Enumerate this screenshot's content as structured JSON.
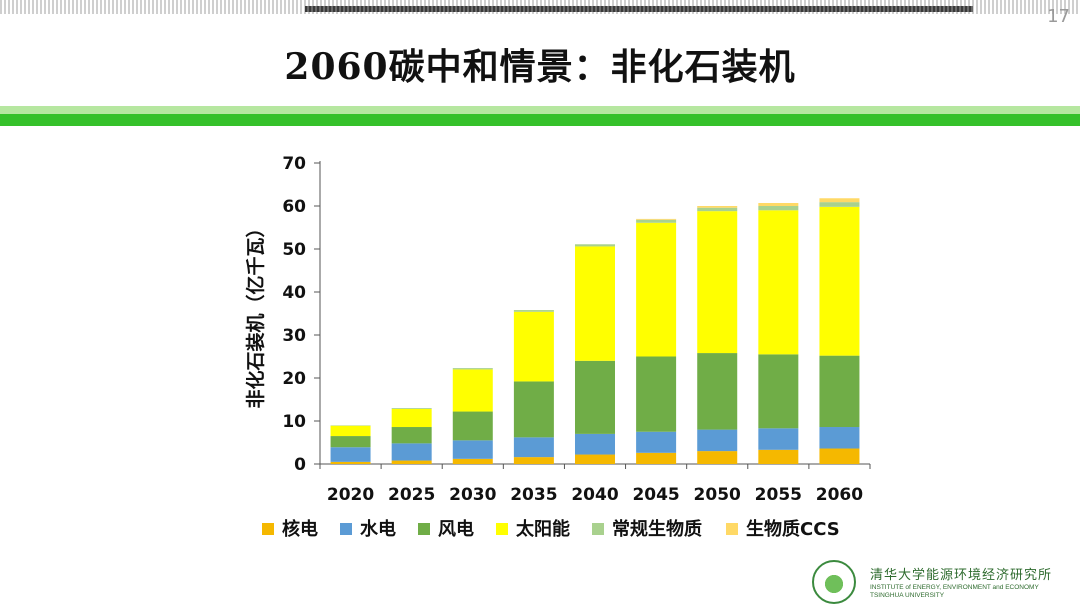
{
  "page": {
    "title": "2060碳中和情景：非化石装机",
    "page_number": "17"
  },
  "footer": {
    "institute_cn": "清华大学能源环境经济研究所",
    "institute_en_line1": "INSTITUTE of ENERGY, ENVIRONMENT and ECONOMY",
    "institute_en_line2": "TSINGHUA UNIVERSITY"
  },
  "colors": {
    "nuclear": "#F5B800",
    "hydro": "#5B9BD5",
    "wind": "#70AD47",
    "solar": "#FFFF00",
    "biomass": "#A9D18E",
    "biomass_ccs": "#FFD966",
    "accent_green": "#35C12A"
  },
  "chart_data": {
    "type": "bar",
    "stacked": true,
    "title": "",
    "xlabel": "",
    "ylabel": "非化石装机（亿千瓦）",
    "ylim": [
      0,
      70
    ],
    "yticks": [
      0,
      10,
      20,
      30,
      40,
      50,
      60,
      70
    ],
    "grid": false,
    "legend_position": "bottom",
    "categories": [
      "2020",
      "2025",
      "2030",
      "2035",
      "2040",
      "2045",
      "2050",
      "2055",
      "2060"
    ],
    "series": [
      {
        "name": "核电",
        "color": "#F5B800",
        "values": [
          0.5,
          0.8,
          1.2,
          1.6,
          2.2,
          2.6,
          3.0,
          3.3,
          3.6
        ]
      },
      {
        "name": "水电",
        "color": "#5B9BD5",
        "values": [
          3.4,
          4.0,
          4.3,
          4.6,
          4.8,
          4.9,
          5.0,
          5.0,
          5.0
        ]
      },
      {
        "name": "风电",
        "color": "#70AD47",
        "values": [
          2.6,
          3.8,
          6.7,
          13.0,
          17.0,
          17.5,
          17.8,
          17.2,
          16.6
        ]
      },
      {
        "name": "太阳能",
        "color": "#FFFF00",
        "values": [
          2.4,
          4.2,
          9.8,
          16.2,
          26.6,
          31.1,
          33.0,
          33.5,
          34.6
        ]
      },
      {
        "name": "常规生物质",
        "color": "#A9D18E",
        "values": [
          0.1,
          0.2,
          0.3,
          0.4,
          0.5,
          0.7,
          0.8,
          1.0,
          1.1
        ]
      },
      {
        "name": "生物质CCS",
        "color": "#FFD966",
        "values": [
          0,
          0,
          0,
          0,
          0,
          0.2,
          0.4,
          0.7,
          0.9
        ]
      }
    ]
  }
}
